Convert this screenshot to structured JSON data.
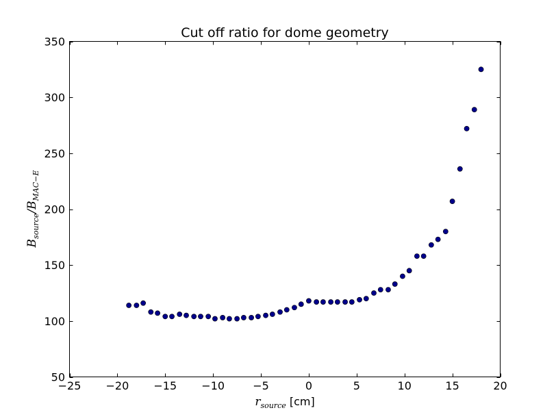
{
  "chart_data": {
    "type": "scatter",
    "title": "Cut off ratio for dome geometry",
    "xlabel": {
      "main": "r",
      "sub": "source",
      "unit": " [cm]"
    },
    "ylabel": {
      "b1": "B",
      "s1": "source",
      "slash": "/",
      "b2": "B",
      "s2": "MAC−E"
    },
    "xlim": [
      -25,
      20
    ],
    "ylim": [
      50,
      350
    ],
    "xticks": [
      -25,
      -20,
      -15,
      -10,
      -5,
      0,
      5,
      10,
      15,
      20
    ],
    "yticks": [
      50,
      100,
      150,
      200,
      250,
      300,
      350
    ],
    "xtick_labels": [
      "−25",
      "−20",
      "−15",
      "−10",
      "−5",
      "0",
      "5",
      "10",
      "15",
      "20"
    ],
    "ytick_labels": [
      "50",
      "100",
      "150",
      "200",
      "250",
      "300",
      "350"
    ],
    "grid": false,
    "marker_color": "#00008b",
    "points": [
      {
        "x": -18.8,
        "y": 114
      },
      {
        "x": -18.0,
        "y": 114
      },
      {
        "x": -17.3,
        "y": 116
      },
      {
        "x": -16.5,
        "y": 108
      },
      {
        "x": -15.8,
        "y": 107
      },
      {
        "x": -15.0,
        "y": 104
      },
      {
        "x": -14.3,
        "y": 104
      },
      {
        "x": -13.5,
        "y": 106
      },
      {
        "x": -12.8,
        "y": 105
      },
      {
        "x": -12.0,
        "y": 104
      },
      {
        "x": -11.3,
        "y": 104
      },
      {
        "x": -10.5,
        "y": 104
      },
      {
        "x": -9.8,
        "y": 102
      },
      {
        "x": -9.0,
        "y": 103
      },
      {
        "x": -8.3,
        "y": 102
      },
      {
        "x": -7.5,
        "y": 102
      },
      {
        "x": -6.8,
        "y": 103
      },
      {
        "x": -6.0,
        "y": 103
      },
      {
        "x": -5.3,
        "y": 104
      },
      {
        "x": -4.5,
        "y": 105
      },
      {
        "x": -3.8,
        "y": 106
      },
      {
        "x": -3.0,
        "y": 108
      },
      {
        "x": -2.3,
        "y": 110
      },
      {
        "x": -1.5,
        "y": 112
      },
      {
        "x": -0.8,
        "y": 115
      },
      {
        "x": 0.0,
        "y": 118
      },
      {
        "x": 0.8,
        "y": 117
      },
      {
        "x": 1.5,
        "y": 117
      },
      {
        "x": 2.3,
        "y": 117
      },
      {
        "x": 3.0,
        "y": 117
      },
      {
        "x": 3.8,
        "y": 117
      },
      {
        "x": 4.5,
        "y": 117
      },
      {
        "x": 5.3,
        "y": 119
      },
      {
        "x": 6.0,
        "y": 120
      },
      {
        "x": 6.8,
        "y": 125
      },
      {
        "x": 7.5,
        "y": 128
      },
      {
        "x": 8.3,
        "y": 128
      },
      {
        "x": 9.0,
        "y": 133
      },
      {
        "x": 9.8,
        "y": 140
      },
      {
        "x": 10.5,
        "y": 145
      },
      {
        "x": 11.3,
        "y": 158
      },
      {
        "x": 12.0,
        "y": 158
      },
      {
        "x": 12.8,
        "y": 168
      },
      {
        "x": 13.5,
        "y": 173
      },
      {
        "x": 14.3,
        "y": 180
      },
      {
        "x": 15.0,
        "y": 207
      },
      {
        "x": 15.8,
        "y": 236
      },
      {
        "x": 16.5,
        "y": 272
      },
      {
        "x": 17.3,
        "y": 289
      },
      {
        "x": 18.0,
        "y": 325
      }
    ]
  }
}
